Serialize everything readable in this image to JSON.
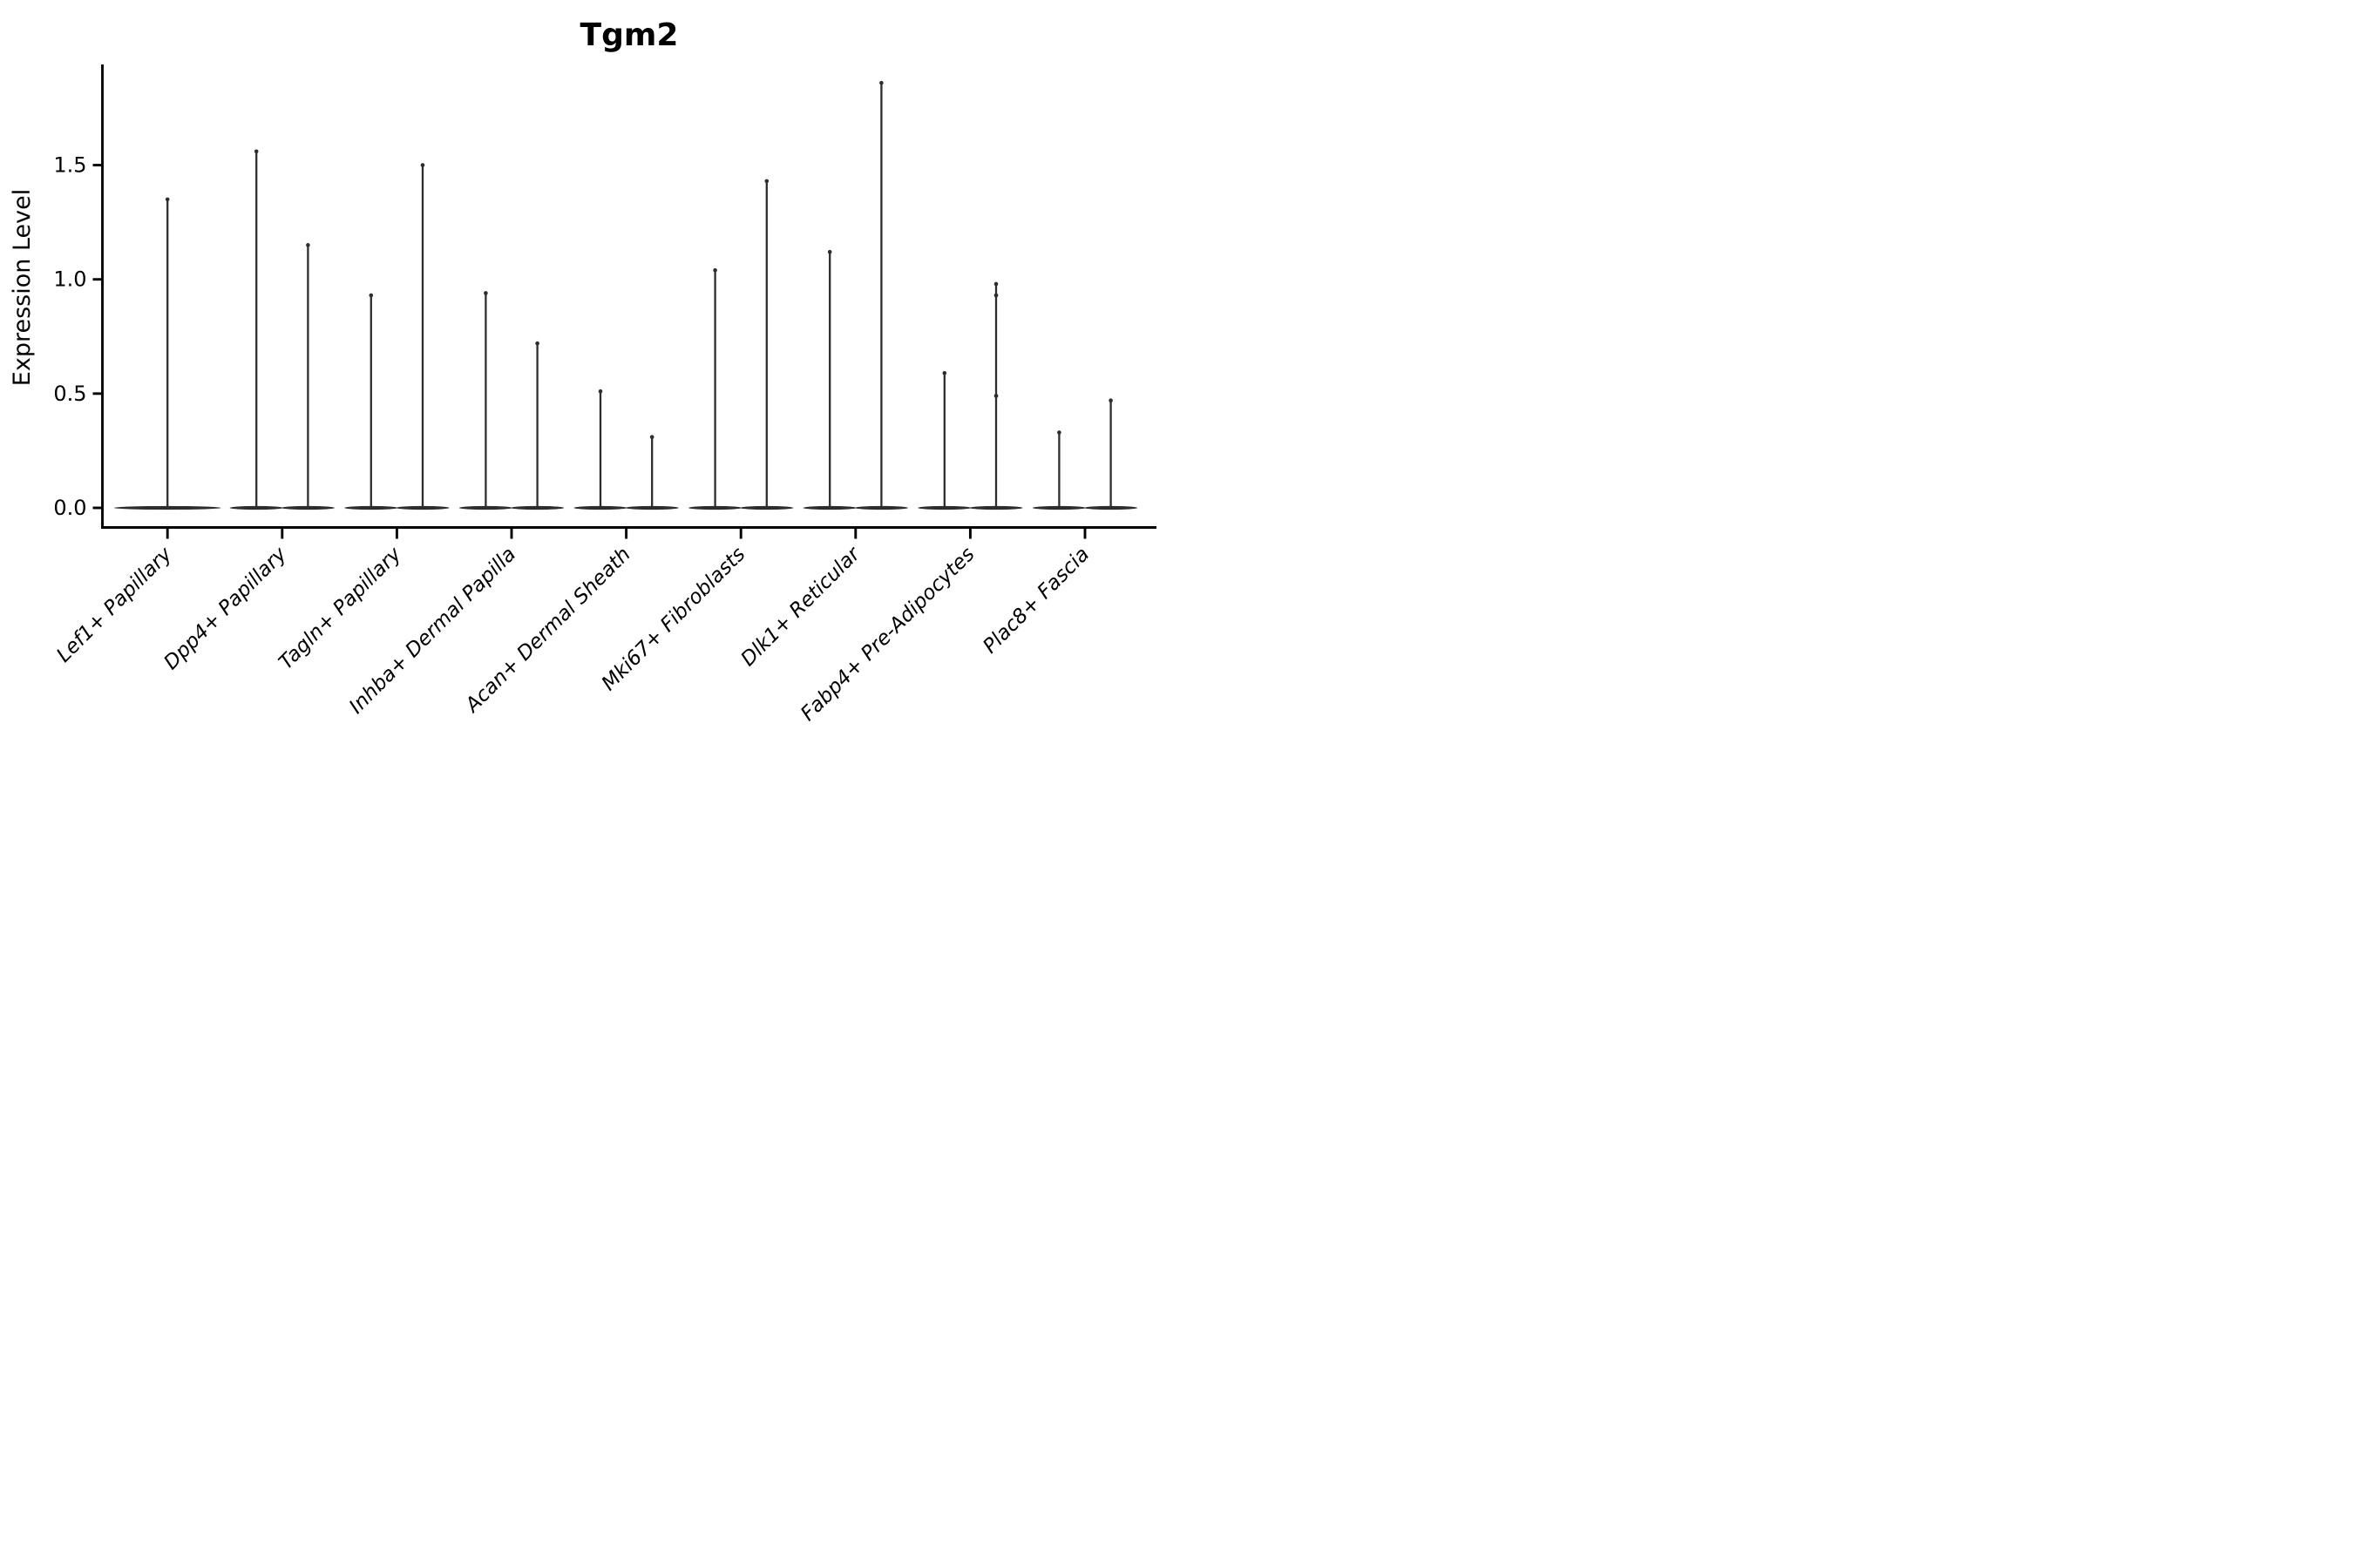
{
  "figure": {
    "background": "#ffffff",
    "axis_color": "#000000",
    "violin_color": "#2d2d2d"
  },
  "chart_data": {
    "type": "violin",
    "title": "Tgm2",
    "xlabel": "",
    "ylabel": "Expression Level",
    "ylim": [
      -0.09,
      1.94
    ],
    "grid": false,
    "legend": "none",
    "yticks": [
      0.0,
      0.5,
      1.0,
      1.5
    ],
    "ytick_labels": [
      "0.0",
      "0.5",
      "1.0",
      "1.5"
    ],
    "categories": [
      "Lef1+ Papillary",
      "Dpp4+ Papillary",
      "Tagln+ Papillary",
      "Inhba+ Dermal Papilla",
      "Acan+ Dermal Sheath",
      "Mki67+ Fibroblasts",
      "Dlk1+ Reticular",
      "Fabp4+ Pre-Adipocytes",
      "Plac8+ Fascia"
    ],
    "groups": [
      {
        "label": "Lef1+ Papillary",
        "violins": [
          {
            "pos": "center",
            "max": 1.35,
            "points": []
          }
        ]
      },
      {
        "label": "Dpp4+ Papillary",
        "violins": [
          {
            "pos": "left",
            "max": 1.56,
            "points": []
          },
          {
            "pos": "right",
            "max": 1.15,
            "points": []
          }
        ]
      },
      {
        "label": "Tagln+ Papillary",
        "violins": [
          {
            "pos": "left",
            "max": 0.93,
            "points": []
          },
          {
            "pos": "right",
            "max": 1.5,
            "points": []
          }
        ]
      },
      {
        "label": "Inhba+ Dermal Papilla",
        "violins": [
          {
            "pos": "left",
            "max": 0.94,
            "points": []
          },
          {
            "pos": "right",
            "max": 0.72,
            "points": []
          }
        ]
      },
      {
        "label": "Acan+ Dermal Sheath",
        "violins": [
          {
            "pos": "left",
            "max": 0.51,
            "points": []
          },
          {
            "pos": "right",
            "max": 0.31,
            "points": []
          }
        ]
      },
      {
        "label": "Mki67+ Fibroblasts",
        "violins": [
          {
            "pos": "left",
            "max": 1.04,
            "points": []
          },
          {
            "pos": "right",
            "max": 1.43,
            "points": []
          }
        ]
      },
      {
        "label": "Dlk1+ Reticular",
        "violins": [
          {
            "pos": "left",
            "max": 1.12,
            "points": []
          },
          {
            "pos": "right",
            "max": 1.86,
            "points": []
          }
        ]
      },
      {
        "label": "Fabp4+ Pre-Adipocytes",
        "violins": [
          {
            "pos": "left",
            "max": 0.59,
            "points": []
          },
          {
            "pos": "right",
            "max": 0.98,
            "points": [
              0.93,
              0.49
            ]
          }
        ]
      },
      {
        "label": "Plac8+ Fascia",
        "violins": [
          {
            "pos": "left",
            "max": 0.33,
            "points": []
          },
          {
            "pos": "right",
            "max": 0.47,
            "points": []
          }
        ]
      }
    ]
  }
}
